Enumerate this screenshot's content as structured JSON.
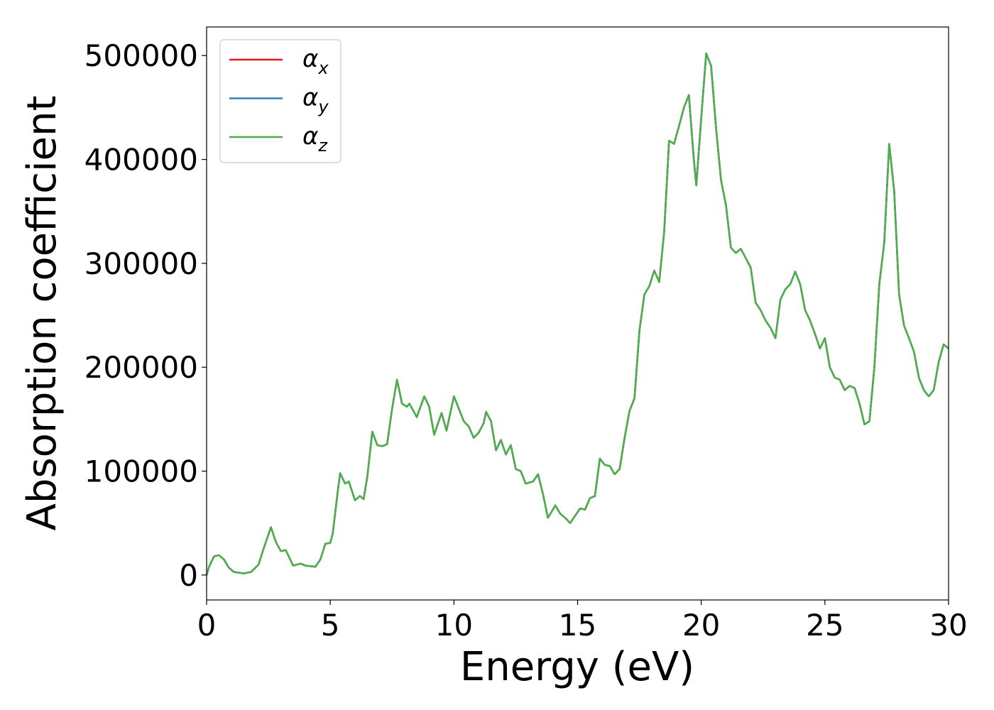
{
  "chart_data": {
    "type": "line",
    "xlabel": "Energy (eV)",
    "ylabel": "Absorption coefficient",
    "x": [
      0,
      0.1,
      0.3,
      0.5,
      0.7,
      0.9,
      1.1,
      1.5,
      1.8,
      2.1,
      2.3,
      2.6,
      2.8,
      3.0,
      3.2,
      3.5,
      3.8,
      4.0,
      4.4,
      4.6,
      4.8,
      5.0,
      5.1,
      5.3,
      5.4,
      5.6,
      5.75,
      6.0,
      6.2,
      6.35,
      6.5,
      6.7,
      6.9,
      7.1,
      7.3,
      7.5,
      7.7,
      7.9,
      8.1,
      8.2,
      8.5,
      8.8,
      9.0,
      9.2,
      9.5,
      9.7,
      10.0,
      10.2,
      10.4,
      10.6,
      10.8,
      11.0,
      11.2,
      11.3,
      11.5,
      11.7,
      11.9,
      12.1,
      12.3,
      12.5,
      12.7,
      12.9,
      13.2,
      13.4,
      13.6,
      13.8,
      14.1,
      14.3,
      14.5,
      14.7,
      14.9,
      15.1,
      15.3,
      15.5,
      15.7,
      15.9,
      16.1,
      16.3,
      16.5,
      16.7,
      16.9,
      17.1,
      17.3,
      17.5,
      17.7,
      17.9,
      18.1,
      18.3,
      18.5,
      18.7,
      18.9,
      19.1,
      19.3,
      19.5,
      19.7,
      19.8,
      20.0,
      20.2,
      20.4,
      20.6,
      20.8,
      21.0,
      21.2,
      21.4,
      21.6,
      21.8,
      22.0,
      22.2,
      22.4,
      22.6,
      22.8,
      23.0,
      23.2,
      23.4,
      23.6,
      23.8,
      24.0,
      24.2,
      24.4,
      24.6,
      24.8,
      25.0,
      25.2,
      25.4,
      25.6,
      25.8,
      26.0,
      26.2,
      26.4,
      26.6,
      26.8,
      27.0,
      27.2,
      27.4,
      27.6,
      27.8,
      28.0,
      28.2,
      28.4,
      28.6,
      28.8,
      29.0,
      29.2,
      29.4,
      29.6,
      29.8,
      30.0
    ],
    "series": [
      {
        "name": "αx",
        "color": "#e41a1c",
        "values": [
          0,
          8000,
          18000,
          19000,
          15000,
          7000,
          3000,
          1500,
          3000,
          10000,
          25000,
          46000,
          32000,
          23000,
          24000,
          9000,
          11000,
          9000,
          8000,
          15000,
          30000,
          31000,
          40000,
          80000,
          98000,
          88000,
          90000,
          72000,
          76000,
          73000,
          95000,
          138000,
          125000,
          124000,
          126000,
          160000,
          188000,
          165000,
          162000,
          165000,
          152000,
          172000,
          162000,
          135000,
          156000,
          139000,
          172000,
          160000,
          148000,
          143000,
          132000,
          137000,
          146000,
          157000,
          148000,
          120000,
          130000,
          116000,
          125000,
          102000,
          100000,
          88000,
          90000,
          97000,
          78000,
          55000,
          67000,
          59000,
          55000,
          50000,
          57000,
          64000,
          63000,
          74000,
          76000,
          112000,
          106000,
          105000,
          97000,
          102000,
          132000,
          158000,
          170000,
          235000,
          270000,
          278000,
          293000,
          282000,
          330000,
          418000,
          415000,
          432000,
          450000,
          462000,
          400000,
          375000,
          440000,
          502000,
          490000,
          430000,
          380000,
          356000,
          315000,
          310000,
          314000,
          305000,
          296000,
          262000,
          255000,
          245000,
          238000,
          228000,
          265000,
          275000,
          280000,
          292000,
          280000,
          255000,
          245000,
          232000,
          218000,
          228000,
          200000,
          190000,
          188000,
          178000,
          182000,
          180000,
          165000,
          145000,
          148000,
          200000,
          280000,
          320000,
          415000,
          370000,
          270000,
          240000,
          228000,
          215000,
          190000,
          178000,
          172000,
          178000,
          205000,
          222000,
          218000
        ]
      },
      {
        "name": "αy",
        "color": "#377eb8",
        "values": [
          0,
          8000,
          18000,
          19000,
          15000,
          7000,
          3000,
          1500,
          3000,
          10000,
          25000,
          46000,
          32000,
          23000,
          24000,
          9000,
          11000,
          9000,
          8000,
          15000,
          30000,
          31000,
          40000,
          80000,
          98000,
          88000,
          90000,
          72000,
          76000,
          73000,
          95000,
          138000,
          125000,
          124000,
          126000,
          160000,
          188000,
          165000,
          162000,
          165000,
          152000,
          172000,
          162000,
          135000,
          156000,
          139000,
          172000,
          160000,
          148000,
          143000,
          132000,
          137000,
          146000,
          157000,
          148000,
          120000,
          130000,
          116000,
          125000,
          102000,
          100000,
          88000,
          90000,
          97000,
          78000,
          55000,
          67000,
          59000,
          55000,
          50000,
          57000,
          64000,
          63000,
          74000,
          76000,
          112000,
          106000,
          105000,
          97000,
          102000,
          132000,
          158000,
          170000,
          235000,
          270000,
          278000,
          293000,
          282000,
          330000,
          418000,
          415000,
          432000,
          450000,
          462000,
          400000,
          375000,
          440000,
          502000,
          490000,
          430000,
          380000,
          356000,
          315000,
          310000,
          314000,
          305000,
          296000,
          262000,
          255000,
          245000,
          238000,
          228000,
          265000,
          275000,
          280000,
          292000,
          280000,
          255000,
          245000,
          232000,
          218000,
          228000,
          200000,
          190000,
          188000,
          178000,
          182000,
          180000,
          165000,
          145000,
          148000,
          200000,
          280000,
          320000,
          415000,
          370000,
          270000,
          240000,
          228000,
          215000,
          190000,
          178000,
          172000,
          178000,
          205000,
          222000,
          218000
        ]
      },
      {
        "name": "αz",
        "color": "#4daf4a",
        "values": [
          0,
          8000,
          18000,
          19000,
          15000,
          7000,
          3000,
          1500,
          3000,
          10000,
          25000,
          46000,
          32000,
          23000,
          24000,
          9000,
          11000,
          9000,
          8000,
          15000,
          30000,
          31000,
          40000,
          80000,
          98000,
          88000,
          90000,
          72000,
          76000,
          73000,
          95000,
          138000,
          125000,
          124000,
          126000,
          160000,
          188000,
          165000,
          162000,
          165000,
          152000,
          172000,
          162000,
          135000,
          156000,
          139000,
          172000,
          160000,
          148000,
          143000,
          132000,
          137000,
          146000,
          157000,
          148000,
          120000,
          130000,
          116000,
          125000,
          102000,
          100000,
          88000,
          90000,
          97000,
          78000,
          55000,
          67000,
          59000,
          55000,
          50000,
          57000,
          64000,
          63000,
          74000,
          76000,
          112000,
          106000,
          105000,
          97000,
          102000,
          132000,
          158000,
          170000,
          235000,
          270000,
          278000,
          293000,
          282000,
          330000,
          418000,
          415000,
          432000,
          450000,
          462000,
          400000,
          375000,
          440000,
          502000,
          490000,
          430000,
          380000,
          356000,
          315000,
          310000,
          314000,
          305000,
          296000,
          262000,
          255000,
          245000,
          238000,
          228000,
          265000,
          275000,
          280000,
          292000,
          280000,
          255000,
          245000,
          232000,
          218000,
          228000,
          200000,
          190000,
          188000,
          178000,
          182000,
          180000,
          165000,
          145000,
          148000,
          200000,
          280000,
          320000,
          415000,
          370000,
          270000,
          240000,
          228000,
          215000,
          190000,
          178000,
          172000,
          178000,
          205000,
          222000,
          218000
        ]
      }
    ],
    "xlim": [
      0,
      30
    ],
    "xticks": [
      0,
      5,
      10,
      15,
      20,
      25,
      30
    ],
    "ylim": [
      -24000,
      527500
    ],
    "yticks": [
      0,
      100000,
      200000,
      300000,
      400000,
      500000
    ],
    "legend": "upper left",
    "grid": false
  }
}
